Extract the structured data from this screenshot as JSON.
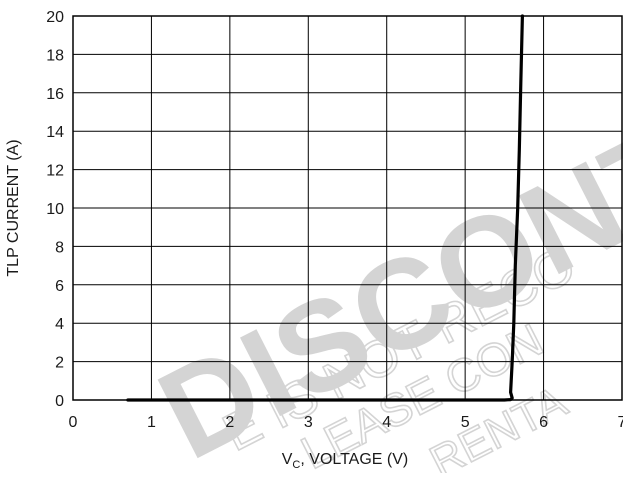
{
  "chart_data": {
    "type": "line",
    "xlabel_main": "V",
    "xlabel_sub": "C",
    "xlabel_rest": ", VOLTAGE (V)",
    "ylabel": "TLP CURRENT (A)",
    "xlim": [
      0,
      7
    ],
    "ylim": [
      0,
      20
    ],
    "x_ticks": [
      0,
      1,
      2,
      3,
      4,
      5,
      6,
      7
    ],
    "y_ticks": [
      0,
      2,
      4,
      6,
      8,
      10,
      12,
      14,
      16,
      18,
      20
    ],
    "grid": true,
    "series": [
      {
        "x": [
          0.7,
          3.0,
          5.0,
          5.5,
          5.58,
          5.6,
          5.58,
          5.6,
          5.62,
          5.64,
          5.67,
          5.69,
          5.71,
          5.73
        ],
        "y": [
          0.0,
          0.0,
          0.0,
          0.0,
          0.02,
          0.1,
          0.4,
          2.0,
          4.0,
          7.0,
          10.0,
          13.0,
          16.5,
          20.0
        ]
      }
    ],
    "watermark": {
      "text_main": "DISCONT",
      "text_line2": "E IS NOT RECO",
      "text_line3": "LEASE CON",
      "text_line4": "RENTA"
    },
    "colors": {
      "line": "#000000",
      "grid": "#000000",
      "watermark": "#d4d4d4"
    }
  }
}
